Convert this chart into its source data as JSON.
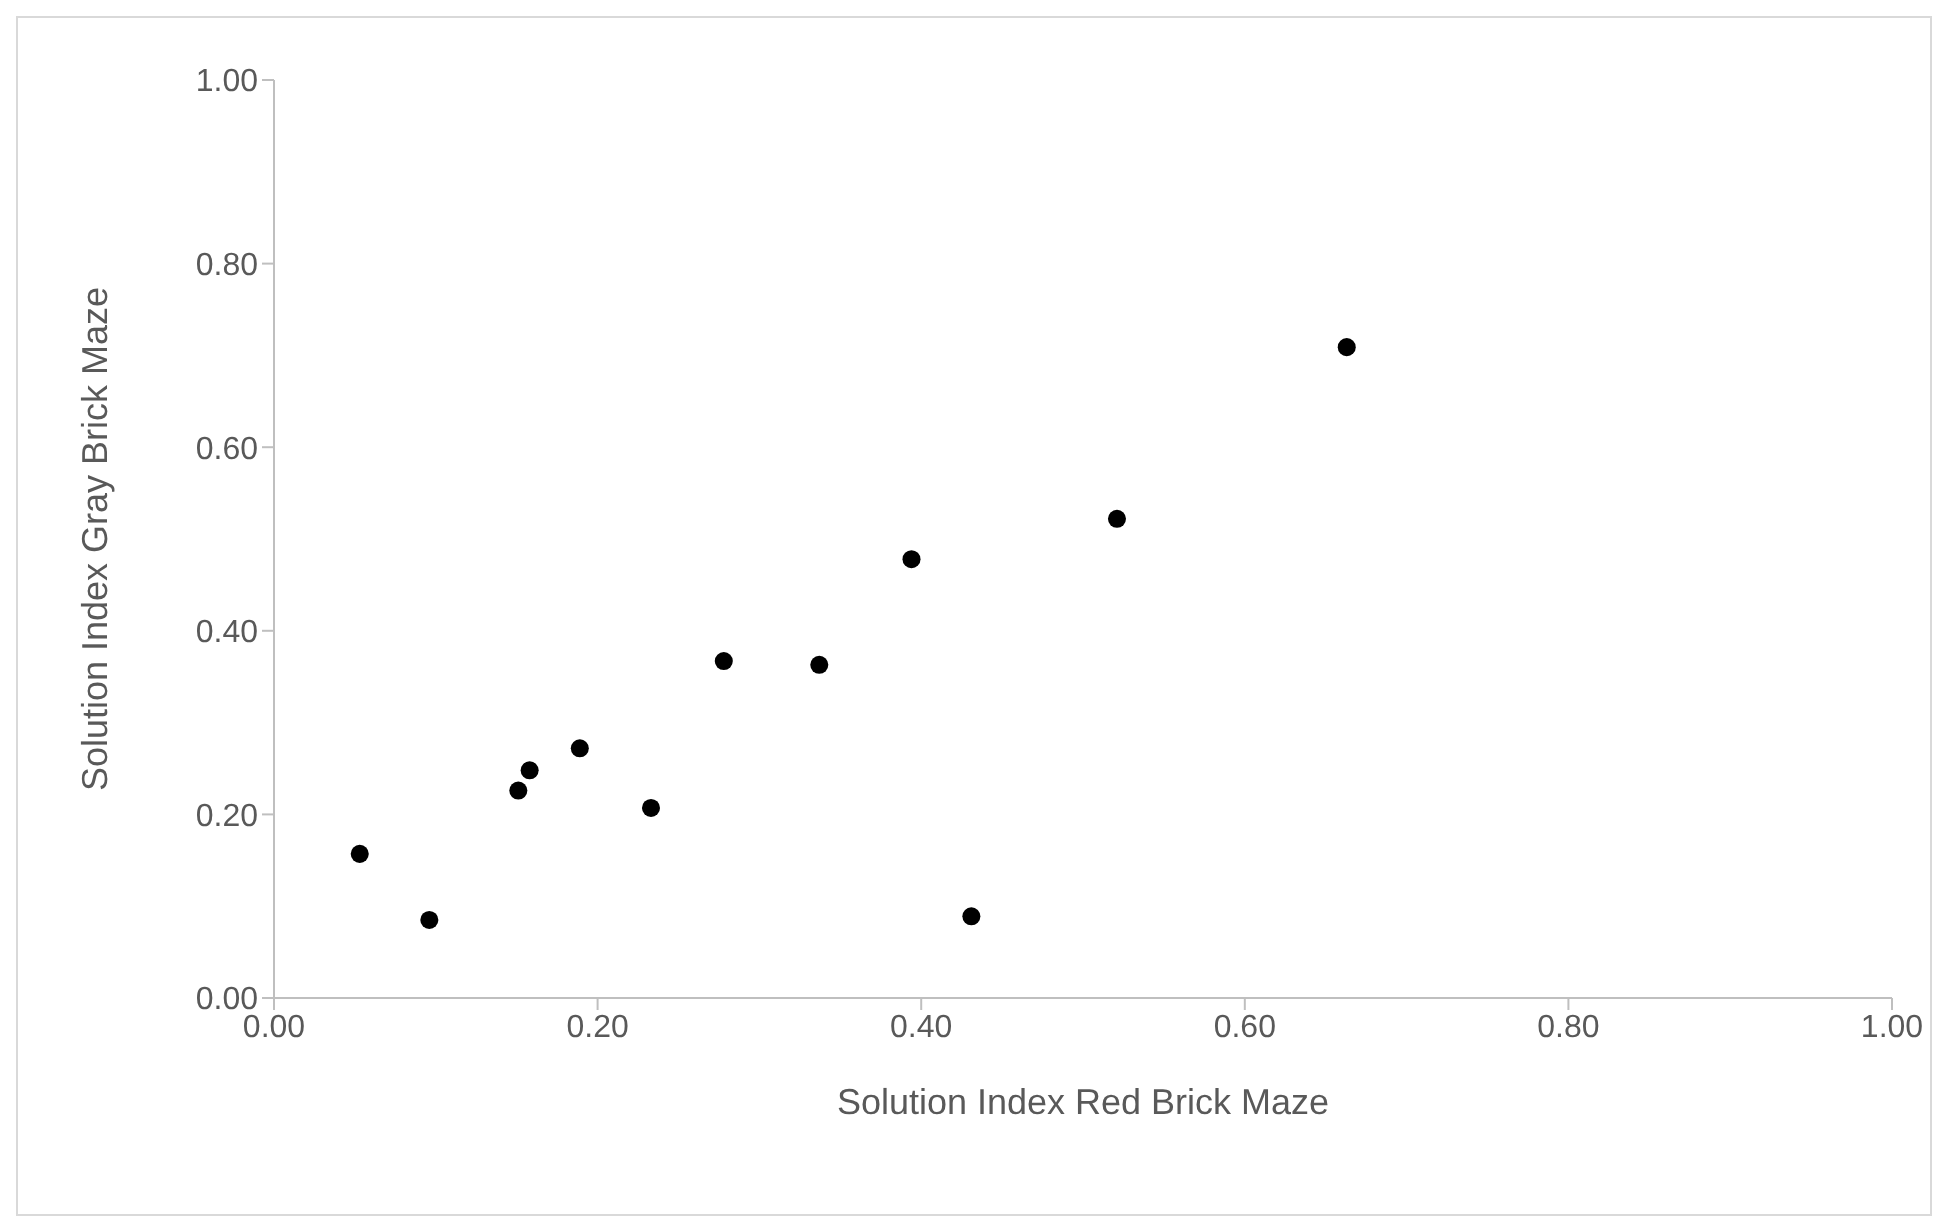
{
  "chart_data": {
    "type": "scatter",
    "xlabel": "Solution Index Red Brick Maze",
    "ylabel": "Solution Index Gray Brick Maze",
    "x": [
      0.053,
      0.096,
      0.151,
      0.158,
      0.189,
      0.233,
      0.278,
      0.337,
      0.394,
      0.431,
      0.521,
      0.663
    ],
    "series": [
      {
        "color": "#000000",
        "values": [
          0.157,
          0.085,
          0.226,
          0.248,
          0.272,
          0.207,
          0.367,
          0.363,
          0.478,
          0.089,
          0.522,
          0.709
        ]
      }
    ],
    "xlim": [
      0,
      1
    ],
    "ylim": [
      0,
      1
    ],
    "xticks": [
      {
        "value": 0,
        "label": "0.00"
      },
      {
        "value": 0.2,
        "label": "0.20"
      },
      {
        "value": 0.4,
        "label": "0.40"
      },
      {
        "value": 0.6,
        "label": "0.60"
      },
      {
        "value": 0.8,
        "label": "0.80"
      },
      {
        "value": 1,
        "label": "1.00"
      }
    ],
    "yticks": [
      {
        "value": 0,
        "label": "0.00"
      },
      {
        "value": 0.2,
        "label": "0.20"
      },
      {
        "value": 0.4,
        "label": "0.40"
      },
      {
        "value": 0.6,
        "label": "0.60"
      },
      {
        "value": 0.8,
        "label": "0.80"
      },
      {
        "value": 1,
        "label": "1.00"
      }
    ],
    "marker": "circle",
    "grid": false,
    "legend": false
  }
}
